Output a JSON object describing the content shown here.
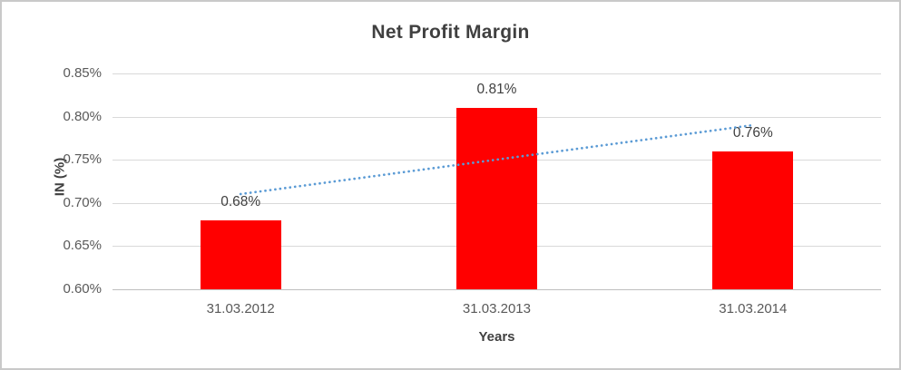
{
  "chart_data": {
    "type": "bar",
    "title": "Net Profit Margin",
    "xlabel": "Years",
    "ylabel": "IN (%)",
    "categories": [
      "31.03.2012",
      "31.03.2013",
      "31.03.2014"
    ],
    "values": [
      0.68,
      0.81,
      0.76
    ],
    "data_labels": [
      "0.68%",
      "0.81%",
      "0.76%"
    ],
    "ylim": [
      0.6,
      0.85
    ],
    "yticks": [
      {
        "value": 0.85,
        "label": "0.85%"
      },
      {
        "value": 0.8,
        "label": "0.80%"
      },
      {
        "value": 0.75,
        "label": "0.75%"
      },
      {
        "value": 0.7,
        "label": "0.70%"
      },
      {
        "value": 0.65,
        "label": "0.65%"
      },
      {
        "value": 0.6,
        "label": "0.60%"
      }
    ],
    "grid": true,
    "legend": "none",
    "trendline": {
      "style": "dotted",
      "shape": "linear",
      "start_value": 0.71,
      "end_value": 0.79
    },
    "colors": {
      "bar": "#ff0000",
      "trendline": "#5b9bd5",
      "gridline": "#d9d9d9",
      "axis_line": "#bfbfbf",
      "frame_border": "#c9c9c9",
      "title_text": "#404040",
      "tick_text": "#595959",
      "data_label_text": "#404040"
    }
  }
}
